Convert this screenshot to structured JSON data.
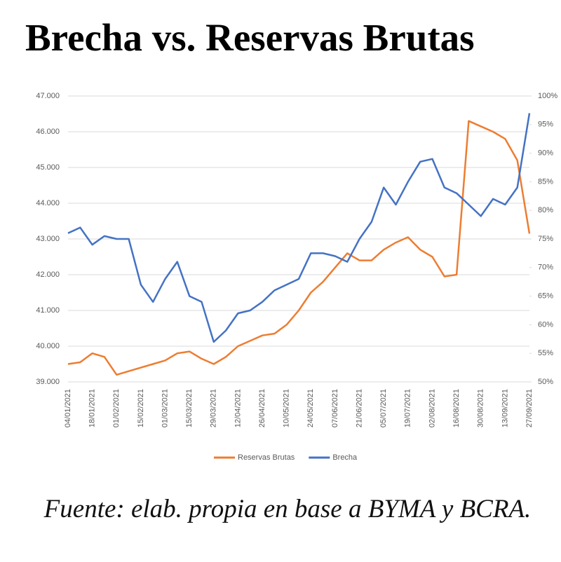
{
  "chart_data": {
    "type": "line",
    "title": "Brecha vs. Reservas Brutas",
    "source": "Fuente: elab. propia en base a BYMA y BCRA.",
    "categories": [
      "04/01/2021",
      null,
      "18/01/2021",
      null,
      "01/02/2021",
      null,
      "15/02/2021",
      null,
      "01/03/2021",
      null,
      "15/03/2021",
      null,
      "29/03/2021",
      null,
      "12/04/2021",
      null,
      "26/04/2021",
      null,
      "10/05/2021",
      null,
      "24/05/2021",
      null,
      "07/06/2021",
      null,
      "21/06/2021",
      null,
      "05/07/2021",
      null,
      "19/07/2021",
      null,
      "02/08/2021",
      null,
      "16/08/2021",
      null,
      "30/08/2021",
      null,
      "13/09/2021",
      null,
      "27/09/2021"
    ],
    "series": [
      {
        "name": "Reservas Brutas",
        "color": "#ed7d31",
        "values": [
          39500,
          39550,
          39800,
          39700,
          39200,
          39300,
          39400,
          39500,
          39600,
          39800,
          39850,
          39650,
          39500,
          39700,
          40000,
          40150,
          40300,
          40350,
          40600,
          41000,
          41500,
          41800,
          42200,
          42600,
          42400,
          42400,
          42700,
          42900,
          43050,
          42700,
          42500,
          41950,
          42000,
          46300,
          46150,
          46000,
          45800,
          45200,
          43150
        ]
      },
      {
        "name": "Brecha",
        "color": "#4472c4",
        "axis": "y2",
        "values": [
          76,
          77,
          74,
          75.5,
          75,
          75,
          67,
          64,
          68,
          71,
          65,
          64,
          57,
          59,
          62,
          62.5,
          64,
          66,
          67,
          68,
          72.5,
          72.5,
          72,
          71,
          75,
          78,
          84,
          81,
          85,
          88.5,
          89,
          84,
          83,
          81,
          79,
          82,
          81,
          84,
          97
        ]
      }
    ],
    "ylim": [
      39000,
      47000
    ],
    "yticks": [
      {
        "value": 39000,
        "label": "39.000"
      },
      {
        "value": 40000,
        "label": "40.000"
      },
      {
        "value": 41000,
        "label": "41.000"
      },
      {
        "value": 42000,
        "label": "42.000"
      },
      {
        "value": 43000,
        "label": "43.000"
      },
      {
        "value": 44000,
        "label": "44.000"
      },
      {
        "value": 45000,
        "label": "45.000"
      },
      {
        "value": 46000,
        "label": "46.000"
      },
      {
        "value": 47000,
        "label": "47.000"
      }
    ],
    "y2lim": [
      50,
      100
    ],
    "y2ticks": [
      {
        "value": 50,
        "label": "50%"
      },
      {
        "value": 55,
        "label": "55%"
      },
      {
        "value": 60,
        "label": "60%"
      },
      {
        "value": 65,
        "label": "65%"
      },
      {
        "value": 70,
        "label": "70%"
      },
      {
        "value": 75,
        "label": "75%"
      },
      {
        "value": 80,
        "label": "80%"
      },
      {
        "value": 85,
        "label": "85%"
      },
      {
        "value": 90,
        "label": "90%"
      },
      {
        "value": 95,
        "label": "95%"
      },
      {
        "value": 100,
        "label": "100%"
      }
    ],
    "grid": true,
    "legend": "bottom"
  }
}
